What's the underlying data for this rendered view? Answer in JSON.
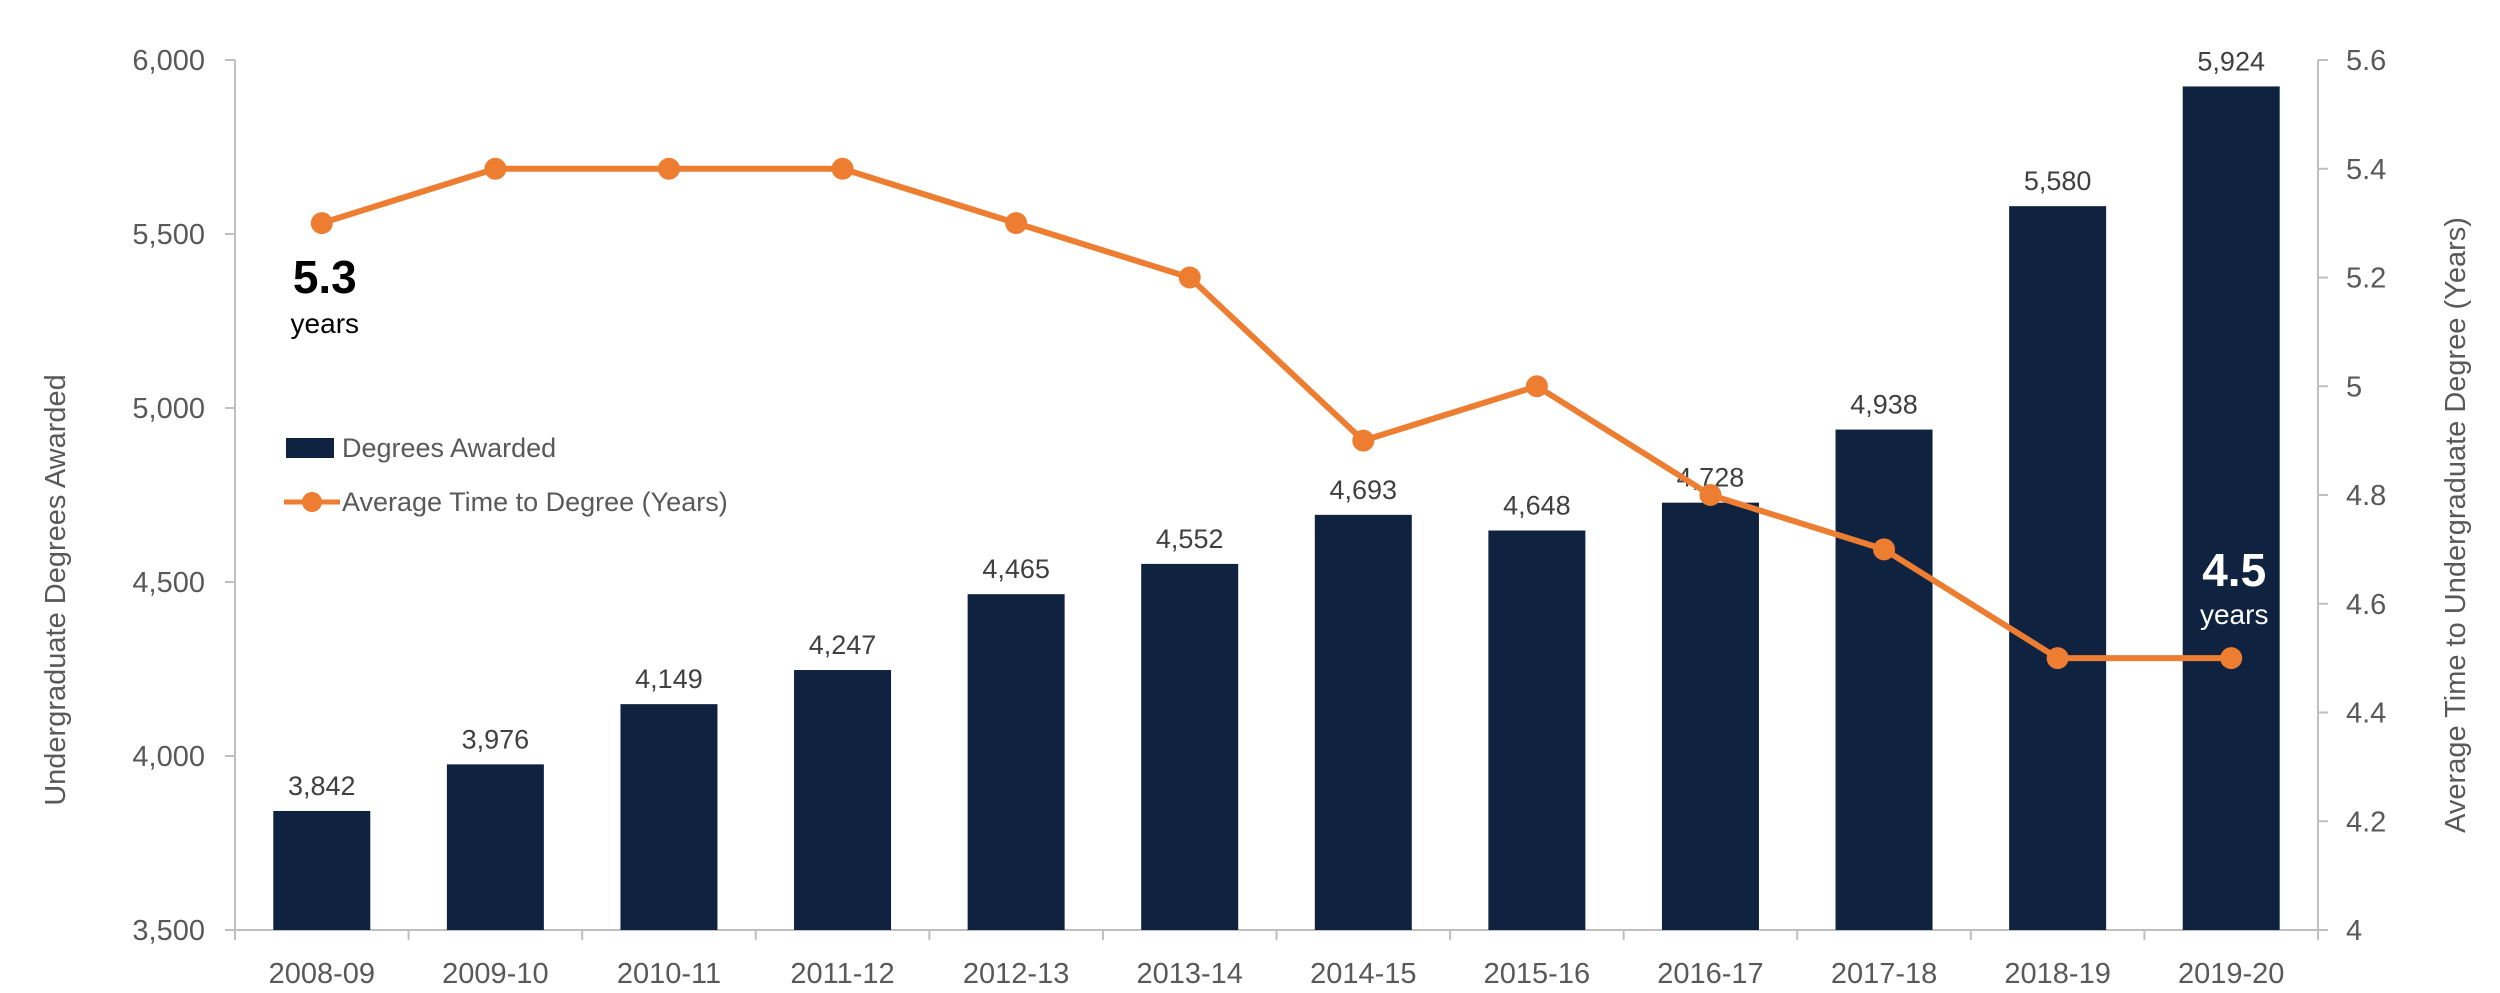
{
  "chart_data": {
    "type": "bar",
    "categories": [
      "2008-09",
      "2009-10",
      "2010-11",
      "2011-12",
      "2012-13",
      "2013-14",
      "2014-15",
      "2015-16",
      "2016-17",
      "2017-18",
      "2018-19",
      "2019-20"
    ],
    "series": [
      {
        "name": "Degrees Awarded",
        "type": "bar",
        "axis": "left",
        "color": "#0f2341",
        "values": [
          3842,
          3976,
          4149,
          4247,
          4465,
          4552,
          4693,
          4648,
          4728,
          4938,
          5580,
          5924
        ],
        "labels": [
          "3,842",
          "3,976",
          "4,149",
          "4,247",
          "4,465",
          "4,552",
          "4,693",
          "4,648",
          "4,728",
          "4,938",
          "5,580",
          "5,924"
        ]
      },
      {
        "name": "Average Time to Degree (Years)",
        "type": "line",
        "axis": "right",
        "color": "#ed7d31",
        "values": [
          5.3,
          5.4,
          5.4,
          5.4,
          5.3,
          5.2,
          4.9,
          5.0,
          4.8,
          4.7,
          4.5,
          4.5
        ]
      }
    ],
    "ylabel": "Undergraduate Degrees Awarded",
    "y2label": "Average Time to Undergraduate Degree (Years)",
    "ylim": [
      3500,
      6000
    ],
    "y2lim": [
      4,
      5.6
    ],
    "yticks": [
      "3,500",
      "4,000",
      "4,500",
      "5,000",
      "5,500",
      "6,000"
    ],
    "y2ticks": [
      "4",
      "4.2",
      "4.4",
      "4.6",
      "4.8",
      "5",
      "5.2",
      "5.4",
      "5.6"
    ],
    "legend_position": "left",
    "grid": false,
    "annotations": [
      {
        "category": "2008-09",
        "value": "5.3",
        "unit": "years",
        "color": "#000000"
      },
      {
        "category": "2019-20",
        "value": "4.5",
        "unit": "years",
        "color": "#ffffff"
      }
    ]
  }
}
